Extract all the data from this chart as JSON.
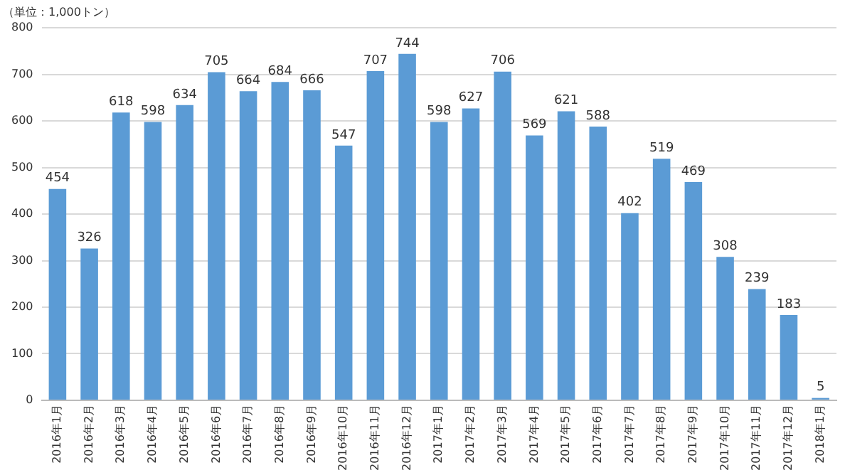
{
  "chart_data": {
    "type": "bar",
    "ylabel": "（単位：1,000トン）",
    "categories": [
      "2016年1月",
      "2016年2月",
      "2016年3月",
      "2016年4月",
      "2016年5月",
      "2016年6月",
      "2016年7月",
      "2016年8月",
      "2016年9月",
      "2016年10月",
      "2016年11月",
      "2016年12月",
      "2017年1月",
      "2017年2月",
      "2017年3月",
      "2017年4月",
      "2017年5月",
      "2017年6月",
      "2017年7月",
      "2017年8月",
      "2017年9月",
      "2017年10月",
      "2017年11月",
      "2017年12月",
      "2018年1月"
    ],
    "values": [
      454,
      326,
      618,
      598,
      634,
      705,
      664,
      684,
      666,
      547,
      707,
      744,
      598,
      627,
      706,
      569,
      621,
      588,
      402,
      519,
      469,
      308,
      239,
      183,
      5
    ],
    "color": "#5b9bd5",
    "ylim": [
      0,
      800
    ],
    "yticks": [
      0,
      100,
      200,
      300,
      400,
      500,
      600,
      700,
      800
    ],
    "grid": "y",
    "data_labels": true
  }
}
